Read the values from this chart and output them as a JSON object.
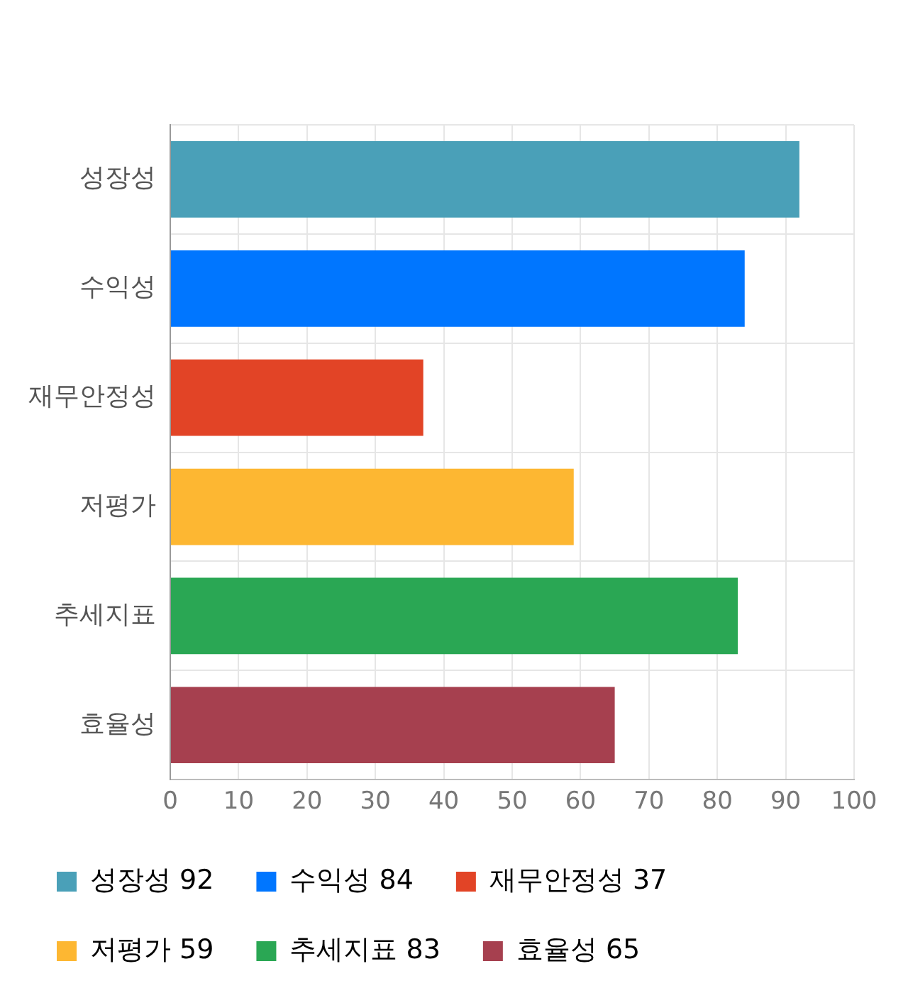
{
  "chart_data": {
    "type": "bar",
    "orientation": "horizontal",
    "stacked": true,
    "categories": [
      "성장성",
      "수익성",
      "재무안정성",
      "저평가",
      "추세지표",
      "효율성"
    ],
    "series": [
      {
        "name": "성장성 92",
        "color": "#4aa0b8",
        "values": [
          92,
          null,
          null,
          null,
          null,
          null
        ]
      },
      {
        "name": "수익성 84",
        "color": "#0076ff",
        "values": [
          null,
          84,
          null,
          null,
          null,
          null
        ]
      },
      {
        "name": "재무안정성 37",
        "color": "#e24426",
        "values": [
          null,
          null,
          37,
          null,
          null,
          null
        ]
      },
      {
        "name": "저평가 59",
        "color": "#fdb732",
        "values": [
          null,
          null,
          null,
          59,
          null,
          null
        ]
      },
      {
        "name": "추세지표 83",
        "color": "#2aa754",
        "values": [
          null,
          null,
          null,
          null,
          83,
          null
        ]
      },
      {
        "name": "효율성 65",
        "color": "#a6404f",
        "values": [
          null,
          null,
          null,
          null,
          null,
          65
        ]
      }
    ],
    "xlim": [
      0,
      100
    ],
    "xticks": [
      0,
      10,
      20,
      30,
      40,
      50,
      60,
      70,
      80,
      90,
      100
    ],
    "grid": true,
    "legend": "bottom"
  }
}
